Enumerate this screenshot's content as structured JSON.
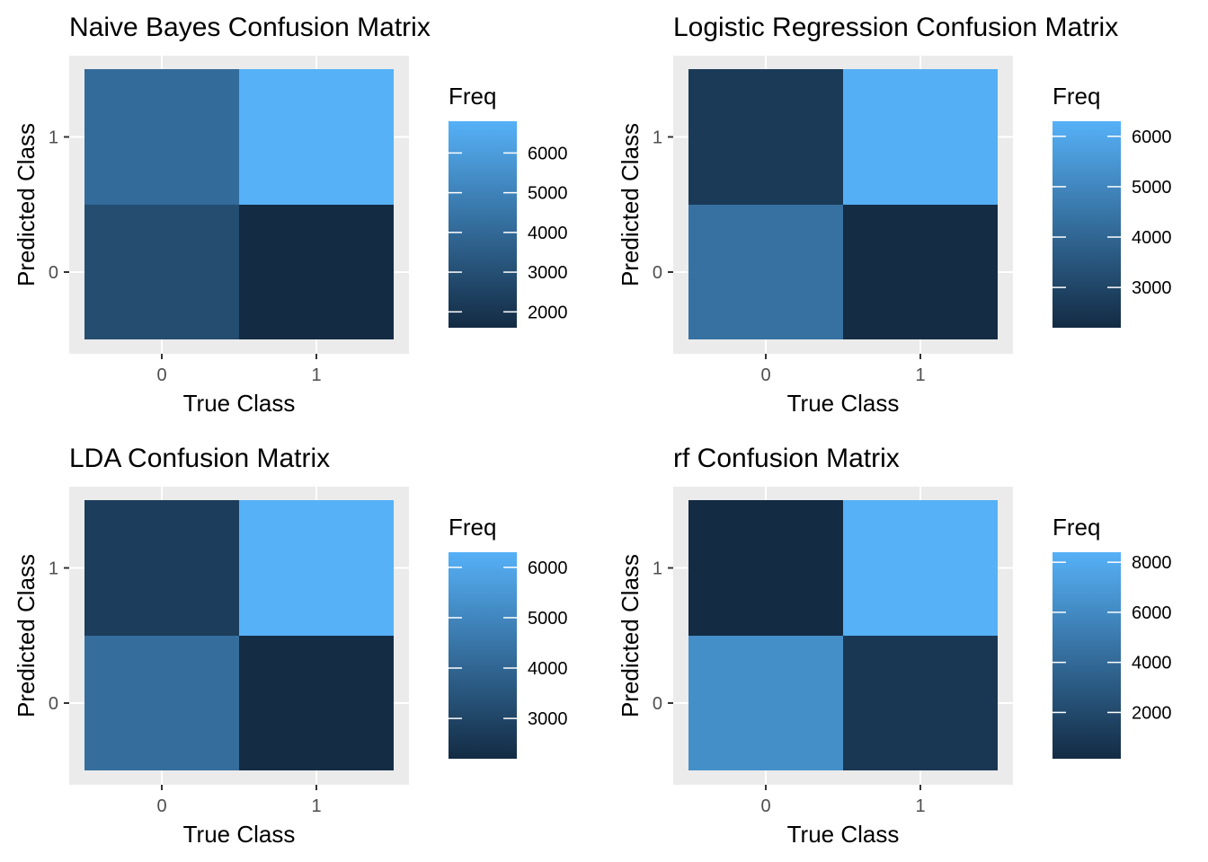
{
  "figure": {
    "background": "#ffffff",
    "panel_background": "#ebebeb",
    "grid_color": "#ffffff",
    "tick_color": "#333333",
    "low_color": "#132b43",
    "high_color": "#56b1f7"
  },
  "chart_data": [
    {
      "type": "heatmap",
      "title": "Naive Bayes Confusion Matrix",
      "xlabel": "True Class",
      "ylabel": "Predicted Class",
      "x_categories": [
        "0",
        "1"
      ],
      "y_categories": [
        "0",
        "1"
      ],
      "cells": [
        {
          "x": "0",
          "y": "0",
          "value": 2900
        },
        {
          "x": "1",
          "y": "0",
          "value": 1600
        },
        {
          "x": "0",
          "y": "1",
          "value": 4100
        },
        {
          "x": "1",
          "y": "1",
          "value": 6800
        }
      ],
      "legend": {
        "title": "Freq",
        "min": 1600,
        "max": 6800,
        "breaks": [
          2000,
          3000,
          4000,
          5000,
          6000
        ],
        "labels": [
          "2000",
          "3000",
          "4000",
          "5000",
          "6000"
        ],
        "position": "right"
      }
    },
    {
      "type": "heatmap",
      "title": "Logistic Regression Confusion Matrix",
      "xlabel": "True Class",
      "ylabel": "Predicted Class",
      "x_categories": [
        "0",
        "1"
      ],
      "y_categories": [
        "0",
        "1"
      ],
      "cells": [
        {
          "x": "0",
          "y": "0",
          "value": 4350
        },
        {
          "x": "1",
          "y": "0",
          "value": 2250
        },
        {
          "x": "0",
          "y": "1",
          "value": 2650
        },
        {
          "x": "1",
          "y": "1",
          "value": 6250
        }
      ],
      "legend": {
        "title": "Freq",
        "min": 2200,
        "max": 6300,
        "breaks": [
          3000,
          4000,
          5000,
          6000
        ],
        "labels": [
          "3000",
          "4000",
          "5000",
          "6000"
        ],
        "position": "right"
      }
    },
    {
      "type": "heatmap",
      "title": "LDA Confusion Matrix",
      "xlabel": "True Class",
      "ylabel": "Predicted Class",
      "x_categories": [
        "0",
        "1"
      ],
      "y_categories": [
        "0",
        "1"
      ],
      "cells": [
        {
          "x": "0",
          "y": "0",
          "value": 4250
        },
        {
          "x": "1",
          "y": "0",
          "value": 2250
        },
        {
          "x": "0",
          "y": "1",
          "value": 2750
        },
        {
          "x": "1",
          "y": "1",
          "value": 6300
        }
      ],
      "legend": {
        "title": "Freq",
        "min": 2200,
        "max": 6300,
        "breaks": [
          3000,
          4000,
          5000,
          6000
        ],
        "labels": [
          "3000",
          "4000",
          "5000",
          "6000"
        ],
        "position": "right"
      }
    },
    {
      "type": "heatmap",
      "title": "rf Confusion Matrix",
      "xlabel": "True Class",
      "ylabel": "Predicted Class",
      "x_categories": [
        "0",
        "1"
      ],
      "y_categories": [
        "0",
        "1"
      ],
      "cells": [
        {
          "x": "0",
          "y": "0",
          "value": 6300
        },
        {
          "x": "1",
          "y": "0",
          "value": 900
        },
        {
          "x": "0",
          "y": "1",
          "value": 150
        },
        {
          "x": "1",
          "y": "1",
          "value": 8400
        }
      ],
      "legend": {
        "title": "Freq",
        "min": 150,
        "max": 8400,
        "breaks": [
          2000,
          4000,
          6000,
          8000
        ],
        "labels": [
          "2000",
          "4000",
          "6000",
          "8000"
        ],
        "position": "right"
      }
    }
  ]
}
